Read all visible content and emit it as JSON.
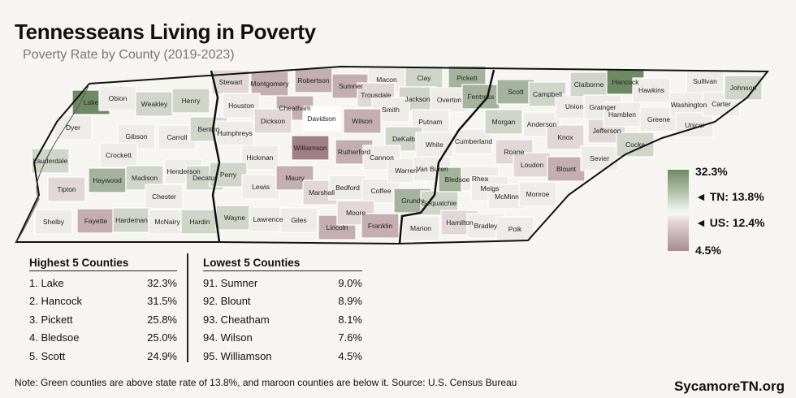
{
  "title": "Tennesseans Living in Poverty",
  "subtitle": "Poverty Rate by County (2019-2023)",
  "colors": {
    "green_dark": "#6e8a63",
    "green_mid": "#a5b39c",
    "green_light": "#cfd6c9",
    "neutral": "#eeece8",
    "white": "#ffffff",
    "maroon_light": "#e2d7d8",
    "maroon_mid": "#c4aeb3",
    "maroon_dark": "#a17f87"
  },
  "legend": {
    "max": "32.3%",
    "tn": "◄ TN: 13.8%",
    "us": "◄ US: 12.4%",
    "min": "4.5%"
  },
  "highest": {
    "heading": "Highest 5 Counties",
    "rows": [
      {
        "name": "1. Lake",
        "value": "32.3%"
      },
      {
        "name": "2. Hancock",
        "value": "31.5%"
      },
      {
        "name": "3. Pickett",
        "value": "25.8%"
      },
      {
        "name": "4. Bledsoe",
        "value": "25.0%"
      },
      {
        "name": "5. Scott",
        "value": "24.9%"
      }
    ]
  },
  "lowest": {
    "heading": "Lowest 5 Counties",
    "rows": [
      {
        "name": "91. Sumner",
        "value": "9.0%"
      },
      {
        "name": "92. Blount",
        "value": "8.9%"
      },
      {
        "name": "93. Cheatham",
        "value": "8.1%"
      },
      {
        "name": "94. Wilson",
        "value": "7.6%"
      },
      {
        "name": "95. Williamson",
        "value": "4.5%"
      }
    ]
  },
  "counties": [
    {
      "name": "Lake",
      "tone": "green_dark"
    },
    {
      "name": "Obion",
      "tone": "neutral"
    },
    {
      "name": "Weakley",
      "tone": "green_light"
    },
    {
      "name": "Henry",
      "tone": "green_light"
    },
    {
      "name": "Dyer",
      "tone": "neutral"
    },
    {
      "name": "Gibson",
      "tone": "neutral"
    },
    {
      "name": "Carroll",
      "tone": "neutral"
    },
    {
      "name": "Benton",
      "tone": "green_light"
    },
    {
      "name": "Crockett",
      "tone": "neutral"
    },
    {
      "name": "Lauderdale",
      "tone": "green_light"
    },
    {
      "name": "Haywood",
      "tone": "green_mid"
    },
    {
      "name": "Madison",
      "tone": "green_light"
    },
    {
      "name": "Henderson",
      "tone": "neutral"
    },
    {
      "name": "Decatur",
      "tone": "green_light"
    },
    {
      "name": "Tipton",
      "tone": "maroon_light"
    },
    {
      "name": "Chester",
      "tone": "neutral"
    },
    {
      "name": "Shelby",
      "tone": "neutral"
    },
    {
      "name": "Fayette",
      "tone": "maroon_mid"
    },
    {
      "name": "Hardeman",
      "tone": "green_light"
    },
    {
      "name": "McNairy",
      "tone": "neutral"
    },
    {
      "name": "Hardin",
      "tone": "green_light"
    },
    {
      "name": "Stewart",
      "tone": "maroon_light"
    },
    {
      "name": "Montgomery",
      "tone": "maroon_mid"
    },
    {
      "name": "Robertson",
      "tone": "maroon_mid"
    },
    {
      "name": "Sumner",
      "tone": "maroon_mid"
    },
    {
      "name": "Macon",
      "tone": "neutral"
    },
    {
      "name": "Clay",
      "tone": "green_light"
    },
    {
      "name": "Pickett",
      "tone": "green_mid"
    },
    {
      "name": "Houston",
      "tone": "neutral"
    },
    {
      "name": "Cheatham",
      "tone": "maroon_mid"
    },
    {
      "name": "Trousdale",
      "tone": "maroon_light"
    },
    {
      "name": "Jackson",
      "tone": "green_light"
    },
    {
      "name": "Overton",
      "tone": "neutral"
    },
    {
      "name": "Fentress",
      "tone": "green_mid"
    },
    {
      "name": "Dickson",
      "tone": "maroon_light"
    },
    {
      "name": "Davidson",
      "tone": "white"
    },
    {
      "name": "Smith",
      "tone": "neutral"
    },
    {
      "name": "Wilson",
      "tone": "maroon_mid"
    },
    {
      "name": "Putnam",
      "tone": "neutral"
    },
    {
      "name": "Humphreys",
      "tone": "neutral"
    },
    {
      "name": "Hickman",
      "tone": "neutral"
    },
    {
      "name": "Williamson",
      "tone": "maroon_dark"
    },
    {
      "name": "Rutherford",
      "tone": "maroon_mid"
    },
    {
      "name": "DeKalb",
      "tone": "green_light"
    },
    {
      "name": "White",
      "tone": "neutral"
    },
    {
      "name": "Cannon",
      "tone": "neutral"
    },
    {
      "name": "Perry",
      "tone": "green_light"
    },
    {
      "name": "Lewis",
      "tone": "neutral"
    },
    {
      "name": "Maury",
      "tone": "maroon_mid"
    },
    {
      "name": "Marshall",
      "tone": "maroon_light"
    },
    {
      "name": "Bedford",
      "tone": "neutral"
    },
    {
      "name": "Coffee",
      "tone": "neutral"
    },
    {
      "name": "Warren",
      "tone": "neutral"
    },
    {
      "name": "Van Buren",
      "tone": "neutral"
    },
    {
      "name": "Wayne",
      "tone": "green_light"
    },
    {
      "name": "Lawrence",
      "tone": "neutral"
    },
    {
      "name": "Giles",
      "tone": "neutral"
    },
    {
      "name": "Lincoln",
      "tone": "maroon_mid"
    },
    {
      "name": "Moore",
      "tone": "maroon_light"
    },
    {
      "name": "Franklin",
      "tone": "maroon_mid"
    },
    {
      "name": "Grundy",
      "tone": "green_mid"
    },
    {
      "name": "Sequatchie",
      "tone": "green_light"
    },
    {
      "name": "Marion",
      "tone": "neutral"
    },
    {
      "name": "Bledsoe",
      "tone": "green_mid"
    },
    {
      "name": "Cumberland",
      "tone": "neutral"
    },
    {
      "name": "Rhea",
      "tone": "neutral"
    },
    {
      "name": "Meigs",
      "tone": "neutral"
    },
    {
      "name": "Hamilton",
      "tone": "maroon_light"
    },
    {
      "name": "Bradley",
      "tone": "neutral"
    },
    {
      "name": "Polk",
      "tone": "neutral"
    },
    {
      "name": "McMinn",
      "tone": "neutral"
    },
    {
      "name": "Monroe",
      "tone": "neutral"
    },
    {
      "name": "Roane",
      "tone": "maroon_light"
    },
    {
      "name": "Loudon",
      "tone": "maroon_light"
    },
    {
      "name": "Blount",
      "tone": "maroon_mid"
    },
    {
      "name": "Morgan",
      "tone": "green_light"
    },
    {
      "name": "Anderson",
      "tone": "neutral"
    },
    {
      "name": "Knox",
      "tone": "maroon_light"
    },
    {
      "name": "Sevier",
      "tone": "neutral"
    },
    {
      "name": "Jefferson",
      "tone": "maroon_light"
    },
    {
      "name": "Scott",
      "tone": "green_mid"
    },
    {
      "name": "Campbell",
      "tone": "green_light"
    },
    {
      "name": "Union",
      "tone": "neutral"
    },
    {
      "name": "Claiborne",
      "tone": "green_light"
    },
    {
      "name": "Hancock",
      "tone": "green_dark"
    },
    {
      "name": "Grainger",
      "tone": "neutral"
    },
    {
      "name": "Hamblen",
      "tone": "neutral"
    },
    {
      "name": "Cocke",
      "tone": "green_light"
    },
    {
      "name": "Greene",
      "tone": "neutral"
    },
    {
      "name": "Hawkins",
      "tone": "neutral"
    },
    {
      "name": "Sullivan",
      "tone": "neutral"
    },
    {
      "name": "Washington",
      "tone": "neutral"
    },
    {
      "name": "Unicoi",
      "tone": "neutral"
    },
    {
      "name": "Carter",
      "tone": "neutral"
    },
    {
      "name": "Johnson",
      "tone": "green_light"
    }
  ],
  "note": "Note: Green counties are above state rate of 13.8%, and maroon counties are below it. Source: U.S. Census Bureau",
  "brand": "SycamoreTN.org"
}
